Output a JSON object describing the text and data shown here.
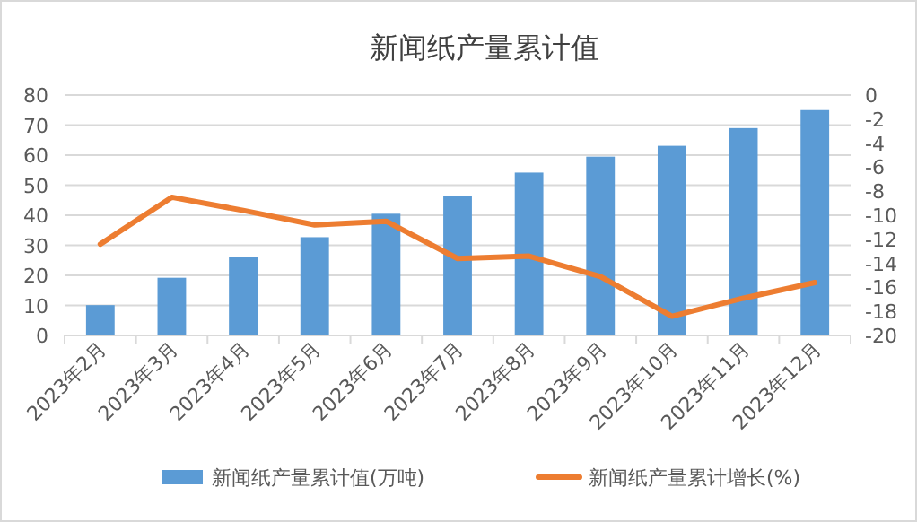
{
  "chart_data": {
    "type": "bar",
    "title": "新闻纸产量累计值",
    "categories": [
      "2023年2月",
      "2023年3月",
      "2023年4月",
      "2023年5月",
      "2023年6月",
      "2023年7月",
      "2023年8月",
      "2023年9月",
      "2023年10月",
      "2023年11月",
      "2023年12月"
    ],
    "series": [
      {
        "name": "新闻纸产量累计值(万吨)",
        "color": "#5b9bd5",
        "values": [
          10.1,
          19.2,
          26.2,
          32.7,
          40.5,
          46.4,
          54.2,
          59.5,
          63.1,
          69.0,
          75.0
        ]
      },
      {
        "name": "新闻纸产量累计增长(%)",
        "type": "line",
        "axis": "y2",
        "color": "#ed7d31",
        "values": [
          -12.4,
          -8.5,
          -9.6,
          -10.8,
          -10.5,
          -13.6,
          -13.4,
          -15.1,
          -18.4,
          -16.9,
          -15.6
        ]
      }
    ],
    "ylim": [
      0,
      80
    ],
    "yticks": [
      0,
      10,
      20,
      30,
      40,
      50,
      60,
      70,
      80
    ],
    "y2lim": [
      -20,
      0
    ],
    "y2ticks": [
      -20,
      -18,
      -16,
      -14,
      -12,
      -10,
      -8,
      -6,
      -4,
      -2,
      0
    ],
    "grid": "y",
    "legend": "bottom"
  }
}
